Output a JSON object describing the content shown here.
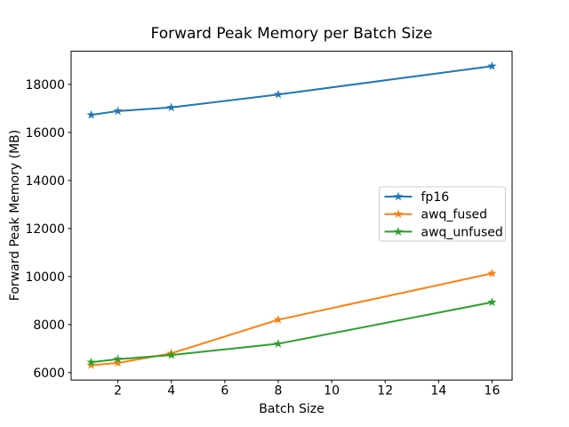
{
  "figure": {
    "background": "#ffffff",
    "title": "Forward Peak Memory per Batch Size",
    "xlabel": "Batch Size",
    "ylabel": "Forward Peak Memory (MB)"
  },
  "chart_data": {
    "type": "line",
    "title": "Forward Peak Memory per Batch Size",
    "xlabel": "Batch Size",
    "ylabel": "Forward Peak Memory (MB)",
    "x": [
      1,
      2,
      4,
      8,
      16
    ],
    "series": [
      {
        "name": "fp16",
        "color": "#1f77b4",
        "marker": "star",
        "values": [
          16730,
          16890,
          17040,
          17580,
          18760
        ]
      },
      {
        "name": "awq_fused",
        "color": "#ff7f0e",
        "marker": "star",
        "values": [
          6310,
          6400,
          6800,
          8200,
          10130
        ]
      },
      {
        "name": "awq_unfused",
        "color": "#2ca02c",
        "marker": "star",
        "values": [
          6430,
          6560,
          6730,
          7200,
          8930
        ]
      }
    ],
    "xticks": [
      2,
      4,
      6,
      8,
      10,
      12,
      14,
      16
    ],
    "yticks": [
      6000,
      8000,
      10000,
      12000,
      14000,
      16000,
      18000
    ],
    "xlim": [
      0.25,
      16.75
    ],
    "ylim": [
      5690,
      19380
    ],
    "grid": false,
    "legend_position": "center-right",
    "legend_border_color": "#cccccc",
    "axis_color": "#000000"
  }
}
